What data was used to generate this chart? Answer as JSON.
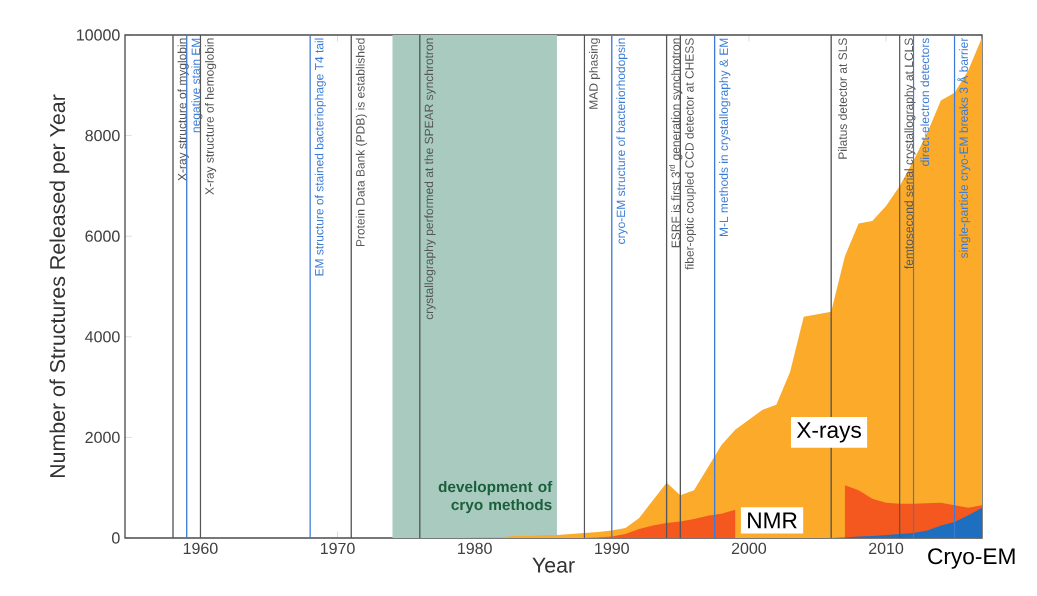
{
  "chart_data": {
    "type": "area",
    "xlabel": "Year",
    "ylabel": "Number of Structures Released per Year",
    "xlim": [
      1954.5,
      2017
    ],
    "ylim": [
      0,
      10000
    ],
    "xticks": [
      1960,
      1970,
      1980,
      1990,
      2000,
      2010
    ],
    "yticks": [
      0,
      2000,
      4000,
      6000,
      8000,
      10000
    ],
    "series": [
      {
        "name": "X-rays",
        "color": "#fbaa2a",
        "x": [
          1975,
          1976,
          1977,
          1978,
          1979,
          1980,
          1981,
          1982,
          1983,
          1984,
          1985,
          1986,
          1987,
          1988,
          1989,
          1990,
          1991,
          1992,
          1993,
          1994,
          1995,
          1996,
          1997,
          1998,
          1999,
          2000,
          2001,
          2002,
          2003,
          2004,
          2005,
          2006,
          2007,
          2008,
          2009,
          2010,
          2011,
          2012,
          2013,
          2014,
          2015,
          2016,
          2017
        ],
        "values": [
          0,
          0,
          0,
          0,
          0,
          20,
          20,
          20,
          40,
          40,
          60,
          60,
          80,
          100,
          120,
          150,
          200,
          400,
          750,
          1100,
          850,
          950,
          1400,
          1850,
          2150,
          2350,
          2550,
          2650,
          3300,
          4400,
          4450,
          4500,
          5600,
          6250,
          6300,
          6600,
          7000,
          7500,
          8050,
          8700,
          8850,
          9300,
          9950
        ]
      },
      {
        "name": "NMR",
        "color": "#f4581e",
        "x": [
          1988,
          1989,
          1990,
          1991,
          1992,
          1993,
          1994,
          1995,
          1996,
          1997,
          1998,
          1999,
          2000,
          2001,
          2002,
          2003,
          2004,
          2005,
          2006,
          2007,
          2008,
          2009,
          2010,
          2011,
          2012,
          2013,
          2014,
          2015,
          2016,
          2017
        ],
        "values": [
          0,
          10,
          30,
          80,
          180,
          250,
          300,
          330,
          380,
          440,
          480,
          560,
          null,
          null,
          null,
          null,
          null,
          null,
          null,
          1050,
          950,
          780,
          700,
          680,
          680,
          690,
          700,
          650,
          600,
          650
        ]
      },
      {
        "name": "Cryo-EM",
        "color": "#1f6fc1",
        "x": [
          2006,
          2007,
          2008,
          2009,
          2010,
          2011,
          2012,
          2013,
          2014,
          2015,
          2016,
          2017
        ],
        "values": [
          0,
          10,
          30,
          40,
          60,
          80,
          100,
          150,
          250,
          320,
          450,
          600
        ]
      }
    ],
    "bands": [
      {
        "axis": "x",
        "from": 1974,
        "to": 1986,
        "label": "development of cryo methods",
        "color": "#a9cbbf"
      }
    ],
    "ref_lines": [
      {
        "axis": "x",
        "value": 1958,
        "label": "X-ray structure of myglobin",
        "color": "#555555"
      },
      {
        "axis": "x",
        "value": 1959,
        "label": "negative stain EM",
        "color": "#3a7bd5"
      },
      {
        "axis": "x",
        "value": 1960,
        "label": "X-ray structure of hemoglobin",
        "color": "#555555"
      },
      {
        "axis": "x",
        "value": 1968,
        "label": "EM structure of stained bacteriophage T4 tail",
        "color": "#3a7bd5"
      },
      {
        "axis": "x",
        "value": 1971,
        "label": "Protein Data Bank (PDB) is established",
        "color": "#555555"
      },
      {
        "axis": "x",
        "value": 1976,
        "label": "crystallography performed at the SPEAR synchrotron",
        "color": "#555555"
      },
      {
        "axis": "x",
        "value": 1988,
        "label": "MAD phasing",
        "color": "#555555"
      },
      {
        "axis": "x",
        "value": 1990,
        "label": "cryo-EM structure of bacteriorhodopsin",
        "color": "#3a7bd5"
      },
      {
        "axis": "x",
        "value": 1994,
        "label": "ESRF is first 3$^{rd}$ generation synchrotron",
        "color": "#555555"
      },
      {
        "axis": "x",
        "value": 1995,
        "label": "fiber-optic coupled CCD detector at CHESS",
        "color": "#555555"
      },
      {
        "axis": "x",
        "value": 1997.5,
        "label": "M-L methods in crystallography & EM",
        "color": "#3a7bd5"
      },
      {
        "axis": "x",
        "value": 2006,
        "label": "Pilatus detector at SLS",
        "color": "#555555"
      },
      {
        "axis": "x",
        "value": 2011,
        "label": "femtosecond serial crystallography at LCLS",
        "color": "#555555"
      },
      {
        "axis": "x",
        "value": 2012,
        "label": "direct-electron detectors",
        "color": "#3a7bd5"
      },
      {
        "axis": "x",
        "value": 2015,
        "label": "single-particle cryo-EM breaks 3 Å barrier",
        "color": "#3a7bd5"
      }
    ]
  }
}
